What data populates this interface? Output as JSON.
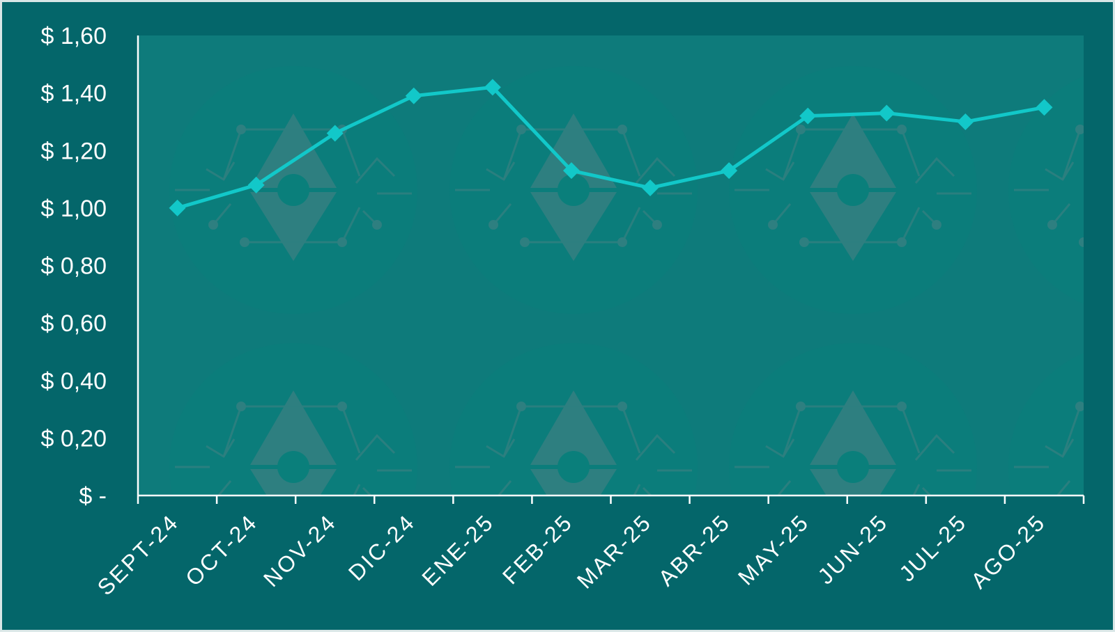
{
  "colors": {
    "background": "#04666a",
    "plot_area": "#0e7b7b",
    "line": "#12c8c9",
    "axis": "#ffffff",
    "text": "#ffffff",
    "watermark_circle": "#0a7f7b",
    "watermark_mark": "#2e7f80"
  },
  "chart_data": {
    "type": "line",
    "categories": [
      "SEPT-24",
      "OCT-24",
      "NOV-24",
      "DIC-24",
      "ENE-25",
      "FEB-25",
      "MAR-25",
      "ABR-25",
      "MAY-25",
      "JUN-25",
      "JUL-25",
      "AGO-25"
    ],
    "series": [
      {
        "values": [
          1.0,
          1.08,
          1.26,
          1.39,
          1.42,
          1.13,
          1.07,
          1.13,
          1.32,
          1.33,
          1.3,
          1.35
        ],
        "marker": "diamond"
      }
    ],
    "ylim": [
      0,
      1.6
    ],
    "yticks": [
      {
        "value": 0,
        "label": "$ -"
      },
      {
        "value": 0.2,
        "label": "$ 0,20"
      },
      {
        "value": 0.4,
        "label": "$ 0,40"
      },
      {
        "value": 0.6,
        "label": "$ 0,60"
      },
      {
        "value": 0.8,
        "label": "$ 0,80"
      },
      {
        "value": 1.0,
        "label": "$ 1,00"
      },
      {
        "value": 1.2,
        "label": "$ 1,20"
      },
      {
        "value": 1.4,
        "label": "$ 1,40"
      },
      {
        "value": 1.6,
        "label": "$ 1,60"
      }
    ],
    "grid": false,
    "legend": "none"
  }
}
